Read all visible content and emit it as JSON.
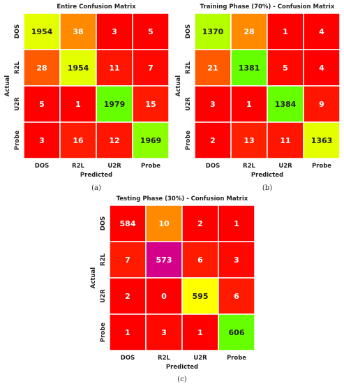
{
  "chart_data": [
    {
      "type": "heatmap",
      "title": "Entire Confusion Matrix",
      "xlabel": "Predicted",
      "ylabel": "Actual",
      "x_categories": [
        "DOS",
        "R2L",
        "U2R",
        "Probe"
      ],
      "y_categories": [
        "DOS",
        "R2L",
        "U2R",
        "Probe"
      ],
      "values": [
        [
          1954,
          38,
          3,
          5
        ],
        [
          28,
          1954,
          11,
          7
        ],
        [
          5,
          1,
          1979,
          15
        ],
        [
          3,
          16,
          12,
          1969
        ]
      ],
      "cell_colors": [
        [
          "#e4ff00",
          "#ff8a00",
          "#ff0000",
          "#ff0000"
        ],
        [
          "#ff5a00",
          "#e4ff00",
          "#ff1500",
          "#ff0800"
        ],
        [
          "#ff0000",
          "#ff0000",
          "#66ff00",
          "#ff1a00"
        ],
        [
          "#ff0000",
          "#ff1c00",
          "#ff1500",
          "#8cff00"
        ]
      ],
      "text_colors": [
        [
          "#222222",
          "#ffffff",
          "#ffffff",
          "#ffffff"
        ],
        [
          "#ffffff",
          "#222222",
          "#ffffff",
          "#ffffff"
        ],
        [
          "#ffffff",
          "#ffffff",
          "#222222",
          "#ffffff"
        ],
        [
          "#ffffff",
          "#ffffff",
          "#ffffff",
          "#222222"
        ]
      ],
      "caption": "(a)"
    },
    {
      "type": "heatmap",
      "title": "Training Phase (70%) - Confusion Matrix",
      "xlabel": "Predicted",
      "ylabel": "Actual",
      "x_categories": [
        "DOS",
        "R2L",
        "U2R",
        "Probe"
      ],
      "y_categories": [
        "DOS",
        "R2L",
        "U2R",
        "Probe"
      ],
      "values": [
        [
          1370,
          28,
          1,
          4
        ],
        [
          21,
          1381,
          5,
          4
        ],
        [
          3,
          1,
          1384,
          9
        ],
        [
          2,
          13,
          11,
          1363
        ]
      ],
      "cell_colors": [
        [
          "#b4ff00",
          "#ff8a00",
          "#ff0000",
          "#ff0000"
        ],
        [
          "#ff5a00",
          "#66ff00",
          "#ff0800",
          "#ff0000"
        ],
        [
          "#ff0000",
          "#ff0000",
          "#66ff00",
          "#ff1500"
        ],
        [
          "#ff0000",
          "#ff2000",
          "#ff1500",
          "#e4ff00"
        ]
      ],
      "text_colors": [
        [
          "#222222",
          "#ffffff",
          "#ffffff",
          "#ffffff"
        ],
        [
          "#ffffff",
          "#222222",
          "#ffffff",
          "#ffffff"
        ],
        [
          "#ffffff",
          "#ffffff",
          "#222222",
          "#ffffff"
        ],
        [
          "#ffffff",
          "#ffffff",
          "#ffffff",
          "#222222"
        ]
      ],
      "caption": "(b)"
    },
    {
      "type": "heatmap",
      "title": "Testing Phase (30%) - Confusion Matrix",
      "xlabel": "Predicted",
      "ylabel": "Actual",
      "x_categories": [
        "DOS",
        "R2L",
        "U2R",
        "Probe"
      ],
      "y_categories": [
        "DOS",
        "R2L",
        "U2R",
        "Probe"
      ],
      "values": [
        [
          584,
          10,
          2,
          1
        ],
        [
          7,
          573,
          6,
          3
        ],
        [
          2,
          0,
          595,
          6
        ],
        [
          1,
          3,
          1,
          606
        ]
      ],
      "cell_colors": [
        [
          "#ff0000",
          "#ff8a00",
          "#ff0000",
          "#ff0000"
        ],
        [
          "#ff1a00",
          "#d4008a",
          "#ff1a00",
          "#ff0800"
        ],
        [
          "#ff0000",
          "#ff0000",
          "#ffff00",
          "#ff1a00"
        ],
        [
          "#ff0000",
          "#ff0800",
          "#ff0000",
          "#66ff00"
        ]
      ],
      "text_colors": [
        [
          "#ffffff",
          "#ffffff",
          "#ffffff",
          "#ffffff"
        ],
        [
          "#ffffff",
          "#ffffff",
          "#ffffff",
          "#ffffff"
        ],
        [
          "#ffffff",
          "#ffffff",
          "#222222",
          "#ffffff"
        ],
        [
          "#ffffff",
          "#ffffff",
          "#ffffff",
          "#222222"
        ]
      ],
      "caption": "(c)"
    }
  ]
}
